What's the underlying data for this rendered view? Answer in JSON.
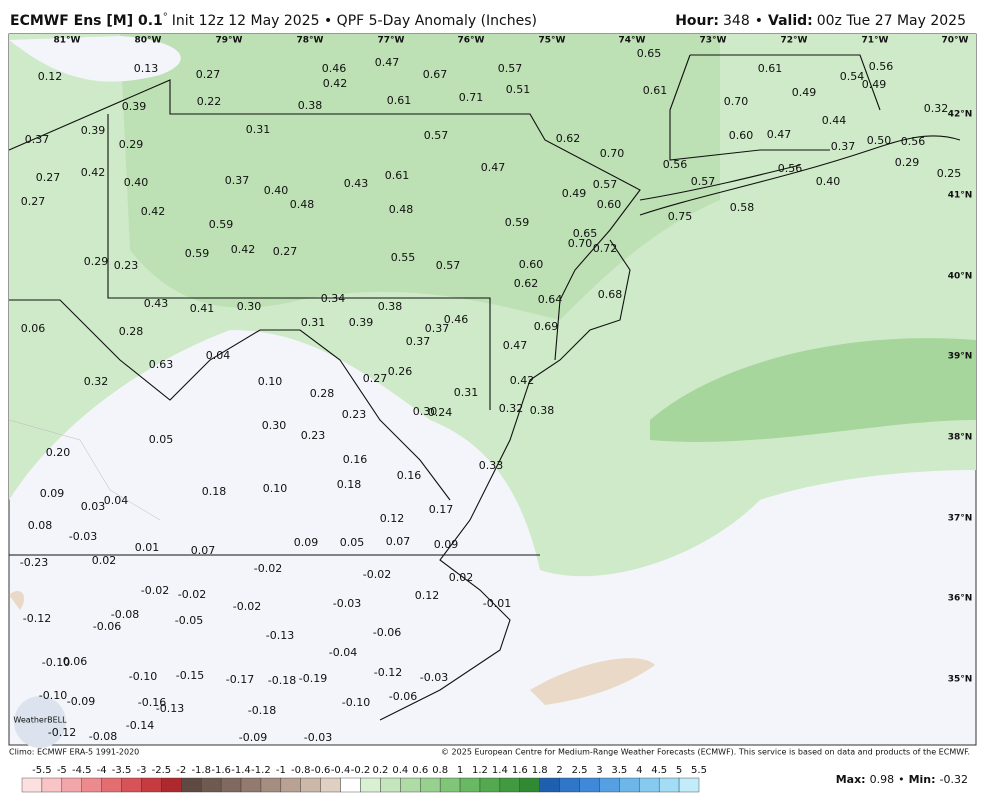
{
  "header": {
    "model": "ECMWF Ens [M] 0.1",
    "degree": "°",
    "init": "Init 12z 12 May 2025 • QPF 5-Day Anomaly (Inches)",
    "hour_label": "Hour:",
    "hour": "348",
    "sep": "•",
    "valid_label": "Valid:",
    "valid": "00z Tue 27 May 2025"
  },
  "longitudes": [
    "81°W",
    "80°W",
    "79°W",
    "78°W",
    "77°W",
    "76°W",
    "75°W",
    "74°W",
    "73°W",
    "72°W",
    "71°W",
    "70°W"
  ],
  "latitudes": [
    "42°N",
    "41°N",
    "40°N",
    "39°N",
    "38°N",
    "37°N",
    "36°N",
    "35°N"
  ],
  "map_labels": [
    "0.12",
    "0.13",
    "0.27",
    "0.46",
    "0.47",
    "0.67",
    "0.57",
    "0.65",
    "0.61",
    "0.54",
    "0.56",
    "0.42",
    "0.51",
    "0.61",
    "0.71",
    "0.61",
    "0.38",
    "0.22",
    "0.39",
    "0.70",
    "0.49",
    "0.49",
    "0.32",
    "0.37",
    "0.39",
    "0.29",
    "0.31",
    "0.57",
    "0.62",
    "0.70",
    "0.60",
    "0.47",
    "0.44",
    "0.50",
    "0.56",
    "0.37",
    "0.29",
    "0.27",
    "0.42",
    "0.40",
    "0.37",
    "0.40",
    "0.43",
    "0.61",
    "0.47",
    "0.56",
    "0.57",
    "0.56",
    "0.40",
    "0.25",
    "0.27",
    "0.42",
    "0.48",
    "0.48",
    "0.57",
    "0.49",
    "0.60",
    "0.75",
    "0.58",
    "0.59",
    "0.59",
    "0.65",
    "0.70",
    "0.72",
    "0.29",
    "0.23",
    "0.59",
    "0.42",
    "0.27",
    "0.55",
    "0.57",
    "0.60",
    "0.62",
    "0.34",
    "0.43",
    "0.41",
    "0.30",
    "0.38",
    "0.64",
    "0.68",
    "0.06",
    "0.28",
    "0.31",
    "0.39",
    "0.37",
    "0.46",
    "0.69",
    "0.37",
    "0.04",
    "0.63",
    "0.26",
    "0.27",
    "0.47",
    "0.32",
    "0.10",
    "0.28",
    "0.31",
    "0.42",
    "0.23",
    "0.30",
    "0.24",
    "0.32",
    "0.38",
    "0.30",
    "0.23",
    "0.05",
    "0.20",
    "0.16",
    "0.16",
    "0.33",
    "0.09",
    "0.04",
    "0.03",
    "0.18",
    "0.10",
    "0.18",
    "0.12",
    "0.17",
    "0.08",
    "-0.03",
    "0.01",
    "0.07",
    "0.09",
    "0.05",
    "0.07",
    "0.09",
    "-0.23",
    "0.02",
    "-0.02",
    "-0.02",
    "0.02",
    "-0.02",
    "-0.02",
    "-0.08",
    "-0.06",
    "-0.12",
    "-0.05",
    "-0.02",
    "-0.03",
    "0.12",
    "-0.01",
    "-0.13",
    "-0.06",
    "-0.04",
    "-0.10",
    "0.06",
    "-0.10",
    "-0.15",
    "-0.17",
    "-0.18",
    "-0.19",
    "-0.12",
    "-0.03",
    "-0.10",
    "-0.09",
    "-0.16",
    "-0.13",
    "-0.18",
    "-0.10",
    "-0.06",
    "-0.12",
    "-0.08",
    "-0.14",
    "-0.09",
    "-0.03"
  ],
  "logo": "WeatherBELL",
  "footer": {
    "climo": "Climo: ECMWF ERA-5 1991-2020",
    "copyright": "© 2025 European Centre for Medium-Range Weather Forecasts (ECMWF). This service is based on data and products of the ECMWF.",
    "max_label": "Max:",
    "max": "0.98",
    "sep": "•",
    "min_label": "Min:",
    "min": "-0.32"
  },
  "colorbar_labels": [
    "-5.5",
    "-5",
    "-4.5",
    "-4",
    "-3.5",
    "-3",
    "-2.5",
    "-2",
    "-1.8",
    "-1.6",
    "-1.4",
    "-1.2",
    "-1",
    "-0.8",
    "-0.6",
    "-0.4",
    "-0.2",
    "0.2",
    "0.4",
    "0.6",
    "0.8",
    "1",
    "1.2",
    "1.4",
    "1.6",
    "1.8",
    "2",
    "2.5",
    "3",
    "3.5",
    "4",
    "4.5",
    "5",
    "5.5"
  ]
}
